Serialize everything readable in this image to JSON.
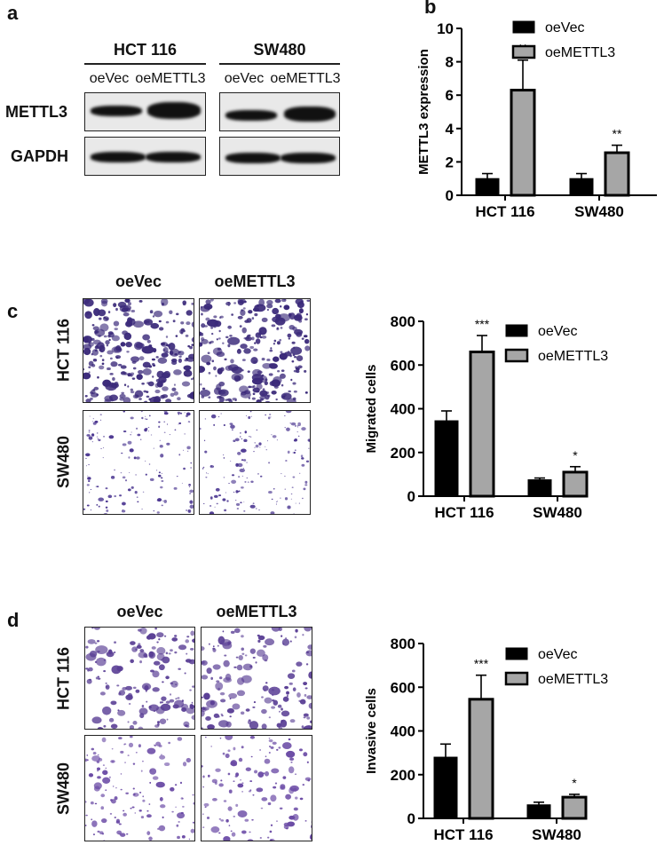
{
  "panel_labels": {
    "a": "a",
    "b": "b",
    "c": "c",
    "d": "d"
  },
  "western_blot": {
    "cell_lines": [
      "HCT 116",
      "SW480"
    ],
    "lanes": [
      "oeVec",
      "oeMETTL3",
      "oeVec",
      "oeMETTL3"
    ],
    "rows": [
      "METTL3",
      "GAPDH"
    ]
  },
  "transwell_migration": {
    "columns": [
      "oeVec",
      "oeMETTL3"
    ],
    "rows": [
      "HCT 116",
      "SW480"
    ]
  },
  "transwell_invasion": {
    "columns": [
      "oeVec",
      "oeMETTL3"
    ],
    "rows": [
      "HCT 116",
      "SW480"
    ]
  },
  "colors": {
    "oeVec": "#000000",
    "oeMETTL3": "#a6a6a6"
  },
  "chart_data": [
    {
      "type": "bar",
      "panel": "b",
      "categories": [
        "HCT 116",
        "SW480"
      ],
      "ylabel": "METTL3 expression",
      "xlabel": "",
      "ylim": [
        0,
        10
      ],
      "yticks": [
        0,
        2,
        4,
        6,
        8,
        10
      ],
      "legend_position": "top-right",
      "series": [
        {
          "name": "oeVec",
          "values": [
            1.0,
            1.0
          ],
          "errors": [
            0.3,
            0.3
          ]
        },
        {
          "name": "oeMETTL3",
          "values": [
            6.3,
            2.55
          ],
          "errors": [
            1.8,
            0.45
          ],
          "significance": [
            "**",
            "**"
          ]
        }
      ]
    },
    {
      "type": "bar",
      "panel": "c",
      "categories": [
        "HCT 116",
        "SW480"
      ],
      "ylabel": "Migrated cells",
      "xlabel": "",
      "ylim": [
        0,
        800
      ],
      "yticks": [
        0,
        200,
        400,
        600,
        800
      ],
      "legend_position": "top-right",
      "series": [
        {
          "name": "oeVec",
          "values": [
            345,
            75
          ],
          "errors": [
            45,
            8
          ]
        },
        {
          "name": "oeMETTL3",
          "values": [
            660,
            110
          ],
          "errors": [
            75,
            25
          ],
          "significance": [
            "***",
            "*"
          ]
        }
      ]
    },
    {
      "type": "bar",
      "panel": "d",
      "categories": [
        "HCT 116",
        "SW480"
      ],
      "ylabel": "Invasive cells",
      "xlabel": "",
      "ylim": [
        0,
        800
      ],
      "yticks": [
        0,
        200,
        400,
        600,
        800
      ],
      "legend_position": "top-right",
      "series": [
        {
          "name": "oeVec",
          "values": [
            280,
            62
          ],
          "errors": [
            60,
            12
          ]
        },
        {
          "name": "oeMETTL3",
          "values": [
            545,
            97
          ],
          "errors": [
            110,
            13
          ],
          "significance": [
            "***",
            "*"
          ]
        }
      ]
    }
  ]
}
